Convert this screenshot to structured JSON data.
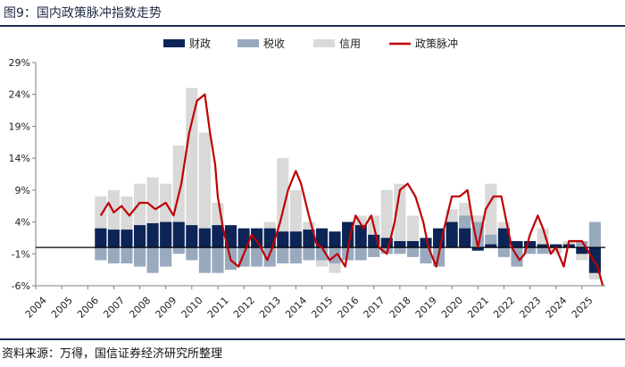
{
  "header": {
    "title": "图9：国内政策脉冲指数走势"
  },
  "footer": {
    "source": "资料来源：万得，国信证券经济研究所整理"
  },
  "colors": {
    "fiscal": "#0c2456",
    "tax": "#99aabf",
    "credit": "#d9d9d9",
    "pulse": "#c00000",
    "rule": "#1d2b4f"
  },
  "chart_data": {
    "type": "bar",
    "title": "国内政策脉冲指数走势",
    "legend": [
      "财政",
      "税收",
      "信用",
      "政策脉冲"
    ],
    "legend_position": "top-right",
    "y_tick_labels": [
      "29%",
      "24%",
      "19%",
      "14%",
      "9%",
      "4%",
      "-1%",
      "-6%"
    ],
    "y_ticks": [
      29,
      24,
      19,
      14,
      9,
      4,
      -1,
      -6
    ],
    "ylim": [
      -6,
      29
    ],
    "x_tick_labels": [
      "2004",
      "2005",
      "2006",
      "2007",
      "2008",
      "2009",
      "2010",
      "2011",
      "2012",
      "2013",
      "2014",
      "2015",
      "2016",
      "2017",
      "2018",
      "2019",
      "2020",
      "2021",
      "2022",
      "2023",
      "2024",
      "2025"
    ],
    "xlim": [
      2004,
      2025.9
    ],
    "x_unit": "year",
    "series": [
      {
        "name": "财政",
        "kind": "bar",
        "points": [
          [
            2006.5,
            3
          ],
          [
            2007,
            2.8
          ],
          [
            2007.5,
            2.8
          ],
          [
            2008,
            3.5
          ],
          [
            2008.5,
            3.8
          ],
          [
            2009,
            4
          ],
          [
            2009.5,
            4
          ],
          [
            2010,
            3.5
          ],
          [
            2010.5,
            3
          ],
          [
            2011,
            3.5
          ],
          [
            2011.5,
            3.5
          ],
          [
            2012,
            3
          ],
          [
            2012.5,
            3
          ],
          [
            2013,
            3
          ],
          [
            2013.5,
            2.5
          ],
          [
            2014,
            2.5
          ],
          [
            2014.5,
            2.8
          ],
          [
            2015,
            3
          ],
          [
            2015.5,
            2.5
          ],
          [
            2016,
            4
          ],
          [
            2016.5,
            3.5
          ],
          [
            2017,
            2
          ],
          [
            2017.5,
            1.5
          ],
          [
            2018,
            1
          ],
          [
            2018.5,
            1
          ],
          [
            2019,
            1.5
          ],
          [
            2019.5,
            3
          ],
          [
            2020,
            4
          ],
          [
            2020.5,
            3
          ],
          [
            2021,
            -0.5
          ],
          [
            2021.5,
            0.5
          ],
          [
            2022,
            3
          ],
          [
            2022.5,
            1
          ],
          [
            2023,
            1
          ],
          [
            2023.5,
            0.5
          ],
          [
            2024,
            0.5
          ],
          [
            2024.5,
            0.5
          ],
          [
            2025,
            -1
          ],
          [
            2025.5,
            -4
          ]
        ]
      },
      {
        "name": "税收",
        "kind": "bar",
        "points": [
          [
            2006.5,
            -2
          ],
          [
            2007,
            -2.5
          ],
          [
            2007.5,
            -2.5
          ],
          [
            2008,
            -3
          ],
          [
            2008.5,
            -4
          ],
          [
            2009,
            -3
          ],
          [
            2009.5,
            -1
          ],
          [
            2010,
            -2
          ],
          [
            2010.5,
            -4
          ],
          [
            2011,
            -4
          ],
          [
            2011.5,
            -3.5
          ],
          [
            2012,
            -3
          ],
          [
            2012.5,
            -3
          ],
          [
            2013,
            -3
          ],
          [
            2013.5,
            -2.5
          ],
          [
            2014,
            -2.5
          ],
          [
            2014.5,
            -2
          ],
          [
            2015,
            -2
          ],
          [
            2015.5,
            -2.5
          ],
          [
            2016,
            -2
          ],
          [
            2016.5,
            -2
          ],
          [
            2017,
            -1.5
          ],
          [
            2017.5,
            -1
          ],
          [
            2018,
            -1
          ],
          [
            2018.5,
            -1.5
          ],
          [
            2019,
            -2.5
          ],
          [
            2019.5,
            -3
          ],
          [
            2020,
            3
          ],
          [
            2020.5,
            5
          ],
          [
            2021,
            4
          ],
          [
            2021.5,
            2
          ],
          [
            2022,
            -1.5
          ],
          [
            2022.5,
            -3
          ],
          [
            2023,
            -1
          ],
          [
            2023.5,
            -1
          ],
          [
            2024,
            0.5
          ],
          [
            2024.5,
            0
          ],
          [
            2025,
            1
          ],
          [
            2025.5,
            4
          ]
        ]
      },
      {
        "name": "信用",
        "kind": "bar",
        "points": [
          [
            2006.5,
            8
          ],
          [
            2007,
            9
          ],
          [
            2007.5,
            8
          ],
          [
            2008,
            10
          ],
          [
            2008.5,
            11
          ],
          [
            2009,
            10
          ],
          [
            2009.5,
            16
          ],
          [
            2010,
            25
          ],
          [
            2010.5,
            18
          ],
          [
            2011,
            7
          ],
          [
            2011.5,
            -2
          ],
          [
            2012,
            -3
          ],
          [
            2012.5,
            1
          ],
          [
            2013,
            4
          ],
          [
            2013.5,
            14
          ],
          [
            2014,
            9
          ],
          [
            2014.5,
            4
          ],
          [
            2015,
            -3
          ],
          [
            2015.5,
            -4
          ],
          [
            2016,
            3
          ],
          [
            2016.5,
            5
          ],
          [
            2017,
            5
          ],
          [
            2017.5,
            9
          ],
          [
            2018,
            10
          ],
          [
            2018.5,
            5
          ],
          [
            2019,
            0
          ],
          [
            2019.5,
            -2
          ],
          [
            2020,
            6
          ],
          [
            2020.5,
            7
          ],
          [
            2021,
            5
          ],
          [
            2021.5,
            10
          ],
          [
            2022,
            4
          ],
          [
            2022.5,
            -2
          ],
          [
            2023,
            1
          ],
          [
            2023.5,
            3
          ],
          [
            2024,
            -1
          ],
          [
            2024.5,
            1
          ],
          [
            2025,
            -2
          ],
          [
            2025.5,
            -5
          ]
        ]
      },
      {
        "name": "政策脉冲",
        "kind": "line",
        "points": [
          [
            2006.5,
            5
          ],
          [
            2006.8,
            7
          ],
          [
            2007,
            5.5
          ],
          [
            2007.3,
            6.5
          ],
          [
            2007.6,
            5
          ],
          [
            2008,
            7
          ],
          [
            2008.3,
            7
          ],
          [
            2008.6,
            6
          ],
          [
            2009,
            7
          ],
          [
            2009.3,
            5
          ],
          [
            2009.6,
            10
          ],
          [
            2009.9,
            18
          ],
          [
            2010.2,
            23
          ],
          [
            2010.5,
            24
          ],
          [
            2010.7,
            18
          ],
          [
            2010.9,
            13
          ],
          [
            2011,
            8
          ],
          [
            2011.2,
            3
          ],
          [
            2011.5,
            -2
          ],
          [
            2011.8,
            -3
          ],
          [
            2012,
            -1
          ],
          [
            2012.3,
            2
          ],
          [
            2012.6,
            0.5
          ],
          [
            2012.9,
            -2
          ],
          [
            2013.1,
            0
          ],
          [
            2013.4,
            4
          ],
          [
            2013.7,
            9
          ],
          [
            2014,
            12
          ],
          [
            2014.2,
            10
          ],
          [
            2014.5,
            5
          ],
          [
            2014.8,
            0.5
          ],
          [
            2015,
            0
          ],
          [
            2015.3,
            -2
          ],
          [
            2015.6,
            -1
          ],
          [
            2015.9,
            -3
          ],
          [
            2016.1,
            2
          ],
          [
            2016.3,
            5
          ],
          [
            2016.6,
            3
          ],
          [
            2016.9,
            5
          ],
          [
            2017.2,
            0
          ],
          [
            2017.5,
            -1
          ],
          [
            2017.8,
            4
          ],
          [
            2018,
            9
          ],
          [
            2018.3,
            10
          ],
          [
            2018.6,
            8
          ],
          [
            2018.9,
            4
          ],
          [
            2019.1,
            0
          ],
          [
            2019.4,
            -3
          ],
          [
            2019.7,
            3
          ],
          [
            2020,
            8
          ],
          [
            2020.3,
            8
          ],
          [
            2020.6,
            9
          ],
          [
            2020.8,
            4
          ],
          [
            2021,
            0
          ],
          [
            2021.3,
            6
          ],
          [
            2021.6,
            8
          ],
          [
            2021.9,
            8
          ],
          [
            2022.1,
            4
          ],
          [
            2022.3,
            0
          ],
          [
            2022.6,
            -2
          ],
          [
            2022.8,
            -1
          ],
          [
            2023,
            2
          ],
          [
            2023.3,
            5
          ],
          [
            2023.5,
            3
          ],
          [
            2023.8,
            -1
          ],
          [
            2024,
            0
          ],
          [
            2024.3,
            -3
          ],
          [
            2024.5,
            1
          ],
          [
            2024.7,
            1
          ],
          [
            2025,
            1
          ],
          [
            2025.3,
            -1
          ],
          [
            2025.6,
            -3
          ],
          [
            2025.8,
            -6
          ]
        ]
      }
    ]
  }
}
